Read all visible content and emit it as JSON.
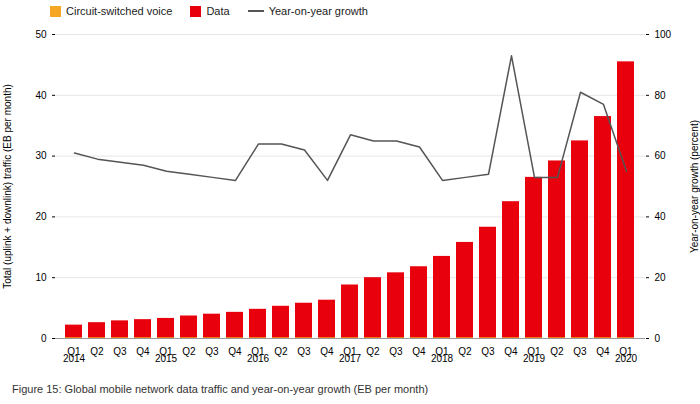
{
  "chart_data": {
    "type": "bar",
    "categories": [
      "Q1",
      "Q2",
      "Q3",
      "Q4",
      "Q1",
      "Q2",
      "Q3",
      "Q4",
      "Q1",
      "Q2",
      "Q3",
      "Q4",
      "Q1",
      "Q2",
      "Q3",
      "Q4",
      "Q1",
      "Q2",
      "Q3",
      "Q4",
      "Q1",
      "Q2",
      "Q3",
      "Q4",
      "Q1"
    ],
    "year_labels": [
      "2014",
      null,
      null,
      null,
      "2015",
      null,
      null,
      null,
      "2016",
      null,
      null,
      null,
      "2017",
      null,
      null,
      null,
      "2018",
      null,
      null,
      null,
      "2019",
      null,
      null,
      null,
      "2020"
    ],
    "series": [
      {
        "name": "Circuit-switched voice",
        "type": "bar",
        "color": "#f5a623",
        "values": [
          0.12,
          0.12,
          0.12,
          0.12,
          0.12,
          0.12,
          0.12,
          0.12,
          0.12,
          0.12,
          0.12,
          0.12,
          0.12,
          0.12,
          0.12,
          0.12,
          0.12,
          0.12,
          0.12,
          0.12,
          0.12,
          0.12,
          0.12,
          0.12,
          0.12
        ]
      },
      {
        "name": "Data",
        "type": "bar",
        "color": "#e8000d",
        "values": [
          2.2,
          2.6,
          2.9,
          3.1,
          3.3,
          3.7,
          4.0,
          4.3,
          4.8,
          5.3,
          5.8,
          6.3,
          8.8,
          10.0,
          10.8,
          11.8,
          13.5,
          15.8,
          18.3,
          22.5,
          26.5,
          29.2,
          32.5,
          36.5,
          45.5
        ]
      },
      {
        "name": "Year-on-year growth",
        "type": "line",
        "axis": "y2",
        "color": "#555555",
        "values": [
          61,
          59,
          58,
          57,
          55,
          54,
          53,
          52,
          64,
          64,
          62,
          52,
          67,
          65,
          65,
          63,
          52,
          53,
          54,
          93,
          53,
          53,
          81,
          77,
          55
        ]
      }
    ],
    "ylabel": "Total (uplink + downlink) traffic (EB per month)",
    "y2label": "Year-on-year growth (percent)",
    "ylim": [
      0,
      50
    ],
    "yticks": [
      0,
      10,
      20,
      30,
      40,
      50
    ],
    "y2lim": [
      0,
      100
    ],
    "y2ticks": [
      0,
      20,
      40,
      60,
      80,
      100
    ],
    "caption": "Figure 15: Global mobile network data traffic and year-on-year growth (EB per month)",
    "stacked": false,
    "grid": true,
    "legend": "upper left"
  }
}
